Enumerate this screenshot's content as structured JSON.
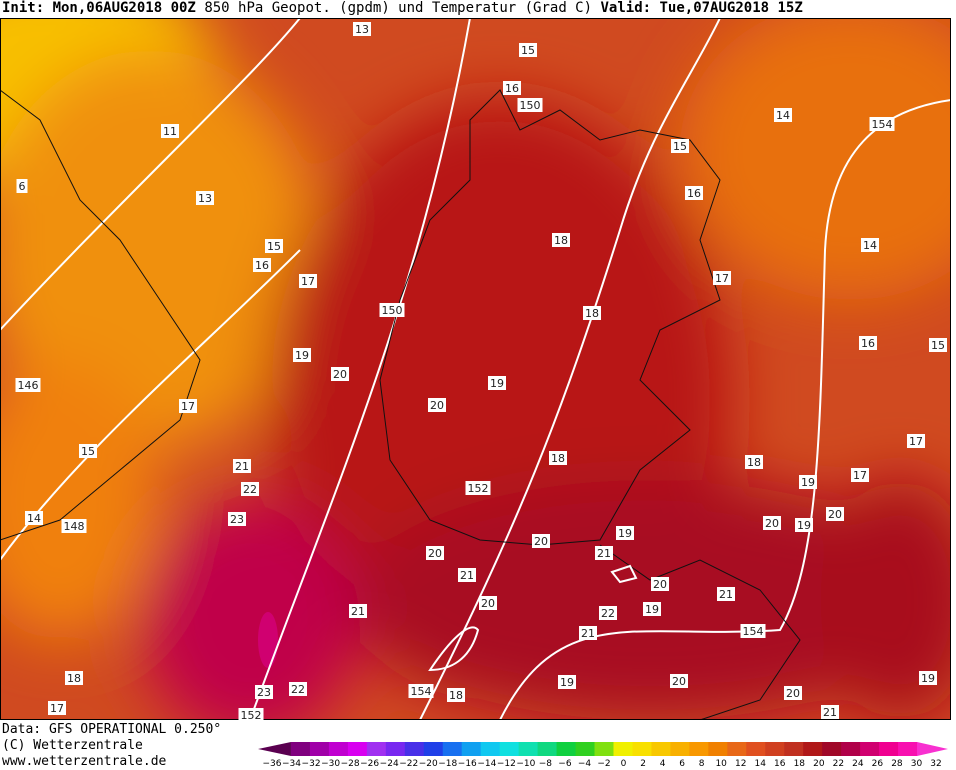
{
  "header": {
    "init": "Init: Mon,06AUG2018 00Z",
    "title": "850 hPa Geopot. (gpdm) und Temperatur (Grad C)",
    "valid": "Valid: Tue,07AUG2018 15Z"
  },
  "map": {
    "labels": [
      "13",
      "15",
      "16",
      "150",
      "11",
      "14",
      "154",
      "15",
      "13",
      "16",
      "6",
      "18",
      "15",
      "16",
      "14",
      "17",
      "17",
      "150",
      "18",
      "16",
      "15",
      "19",
      "20",
      "19",
      "146",
      "20",
      "17",
      "15",
      "17",
      "18",
      "18",
      "17",
      "21",
      "19",
      "22",
      "152",
      "14",
      "148",
      "23",
      "20",
      "19",
      "20",
      "19",
      "20",
      "20",
      "21",
      "21",
      "20",
      "20",
      "19",
      "21",
      "22",
      "21",
      "21",
      "154",
      "18",
      "19",
      "20",
      "23",
      "22",
      "154",
      "18",
      "20",
      "19",
      "17",
      "152",
      "21"
    ]
  },
  "footer": {
    "lines": [
      "Data: GFS OPERATIONAL 0.250°",
      "(C) Wetterzentrale",
      "www.wetterzentrale.de"
    ]
  },
  "colorbar": {
    "labels": [
      "−36",
      "−34",
      "−32",
      "−30",
      "−28",
      "−26",
      "−24",
      "−22",
      "−20",
      "−18",
      "−16",
      "−14",
      "−12",
      "−10",
      "−8",
      "−6",
      "−4",
      "−2",
      "0",
      "2",
      "4",
      "6",
      "8",
      "10",
      "12",
      "14",
      "16",
      "18",
      "20",
      "22",
      "24",
      "26",
      "28",
      "30",
      "32"
    ],
    "colors": [
      "#5a0050",
      "#80007f",
      "#a000a8",
      "#c000d0",
      "#d800f0",
      "#a030f0",
      "#7828f0",
      "#4830e8",
      "#2040e8",
      "#1870f0",
      "#10a0f0",
      "#10c8f0",
      "#10e0e0",
      "#10e0b0",
      "#10d880",
      "#10d040",
      "#30d020",
      "#80e010",
      "#f0f000",
      "#f8e000",
      "#f8c800",
      "#f8b000",
      "#f89800",
      "#f08000",
      "#e86818",
      "#e05020",
      "#d04020",
      "#c03020",
      "#b01818",
      "#a00828",
      "#b00048",
      "#d00070",
      "#f00090",
      "#f810b0",
      "#f830d0"
    ]
  }
}
